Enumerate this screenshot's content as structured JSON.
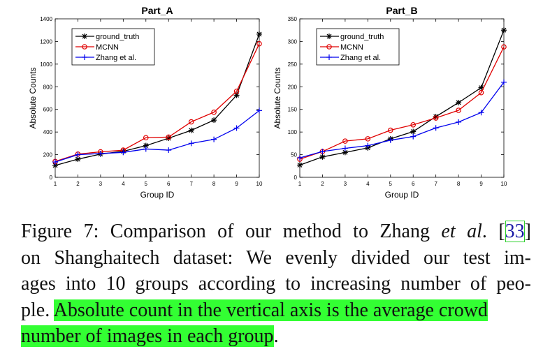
{
  "figure": {
    "charts": [
      {
        "id": "A",
        "type": "line",
        "title": "Part_A",
        "xlabel": "Group ID",
        "ylabel": "Absolute Counts",
        "x": [
          1,
          2,
          3,
          4,
          5,
          6,
          7,
          8,
          9,
          10
        ],
        "xlim": [
          1,
          10
        ],
        "ylim": [
          0,
          1400
        ],
        "yticks": [
          0,
          200,
          400,
          600,
          800,
          1000,
          1200,
          1400
        ],
        "legend": [
          "ground_truth",
          "MCNN",
          "Zhang et al."
        ],
        "series": [
          {
            "name": "ground_truth",
            "color": "#000000",
            "marker": "star",
            "values": [
              105,
              160,
              205,
              230,
              280,
              345,
              415,
              505,
              725,
              1265
            ]
          },
          {
            "name": "MCNN",
            "color": "#e00000",
            "marker": "circle",
            "values": [
              140,
              205,
              225,
              240,
              350,
              355,
              490,
              575,
              760,
              1180
            ]
          },
          {
            "name": "Zhang et al.",
            "color": "#0000ee",
            "marker": "plus",
            "values": [
              135,
              200,
              210,
              220,
              250,
              240,
              300,
              335,
              435,
              590
            ]
          }
        ]
      },
      {
        "id": "B",
        "type": "line",
        "title": "Part_B",
        "xlabel": "Group ID",
        "ylabel": "Absolute Counts",
        "x": [
          1,
          2,
          3,
          4,
          5,
          6,
          7,
          8,
          9,
          10
        ],
        "xlim": [
          1,
          10
        ],
        "ylim": [
          0,
          350
        ],
        "yticks": [
          0,
          50,
          100,
          150,
          200,
          250,
          300,
          350
        ],
        "legend": [
          "ground_truth",
          "MCNN",
          "Zhang et al."
        ],
        "series": [
          {
            "name": "ground_truth",
            "color": "#000000",
            "marker": "star",
            "values": [
              27,
              45,
              55,
              65,
              85,
              101,
              134,
              165,
              198,
              325
            ]
          },
          {
            "name": "MCNN",
            "color": "#e00000",
            "marker": "circle",
            "values": [
              40,
              57,
              80,
              85,
              104,
              116,
              131,
              148,
              187,
              288
            ]
          },
          {
            "name": "Zhang et al.",
            "color": "#0000ee",
            "marker": "plus",
            "values": [
              43,
              57,
              64,
              70,
              82,
              90,
              109,
              122,
              143,
              210
            ]
          }
        ]
      }
    ]
  },
  "chart_data": [
    {
      "type": "line",
      "title": "Part_A",
      "xlabel": "Group ID",
      "ylabel": "Absolute Counts",
      "x": [
        1,
        2,
        3,
        4,
        5,
        6,
        7,
        8,
        9,
        10
      ],
      "ylim": [
        0,
        1400
      ],
      "series": [
        {
          "name": "ground_truth",
          "values": [
            105,
            160,
            205,
            230,
            280,
            345,
            415,
            505,
            725,
            1265
          ]
        },
        {
          "name": "MCNN",
          "values": [
            140,
            205,
            225,
            240,
            350,
            355,
            490,
            575,
            760,
            1180
          ]
        },
        {
          "name": "Zhang et al.",
          "values": [
            135,
            200,
            210,
            220,
            250,
            240,
            300,
            335,
            435,
            590
          ]
        }
      ]
    },
    {
      "type": "line",
      "title": "Part_B",
      "xlabel": "Group ID",
      "ylabel": "Absolute Counts",
      "x": [
        1,
        2,
        3,
        4,
        5,
        6,
        7,
        8,
        9,
        10
      ],
      "ylim": [
        0,
        350
      ],
      "series": [
        {
          "name": "ground_truth",
          "values": [
            27,
            45,
            55,
            65,
            85,
            101,
            134,
            165,
            198,
            325
          ]
        },
        {
          "name": "MCNN",
          "values": [
            40,
            57,
            80,
            85,
            104,
            116,
            131,
            148,
            187,
            288
          ]
        },
        {
          "name": "Zhang et al.",
          "values": [
            43,
            57,
            64,
            70,
            82,
            90,
            109,
            122,
            143,
            210
          ]
        }
      ]
    }
  ],
  "caption": {
    "line1_a": "Figure 7: Comparison of our method to Zhang ",
    "line1_b": "et al",
    "line1_c": ". [",
    "line1_ref": "33",
    "line1_d": "]",
    "line2": "on Shanghaitech dataset: We evenly divided our test im-",
    "line3": "ages into 10 groups according to increasing number of peo-",
    "line4_a": "ple. ",
    "line4_hl": "Absolute count in the vertical axis is the average crowd",
    "line5_hl": "number of images in each group",
    "line5_end": "."
  }
}
